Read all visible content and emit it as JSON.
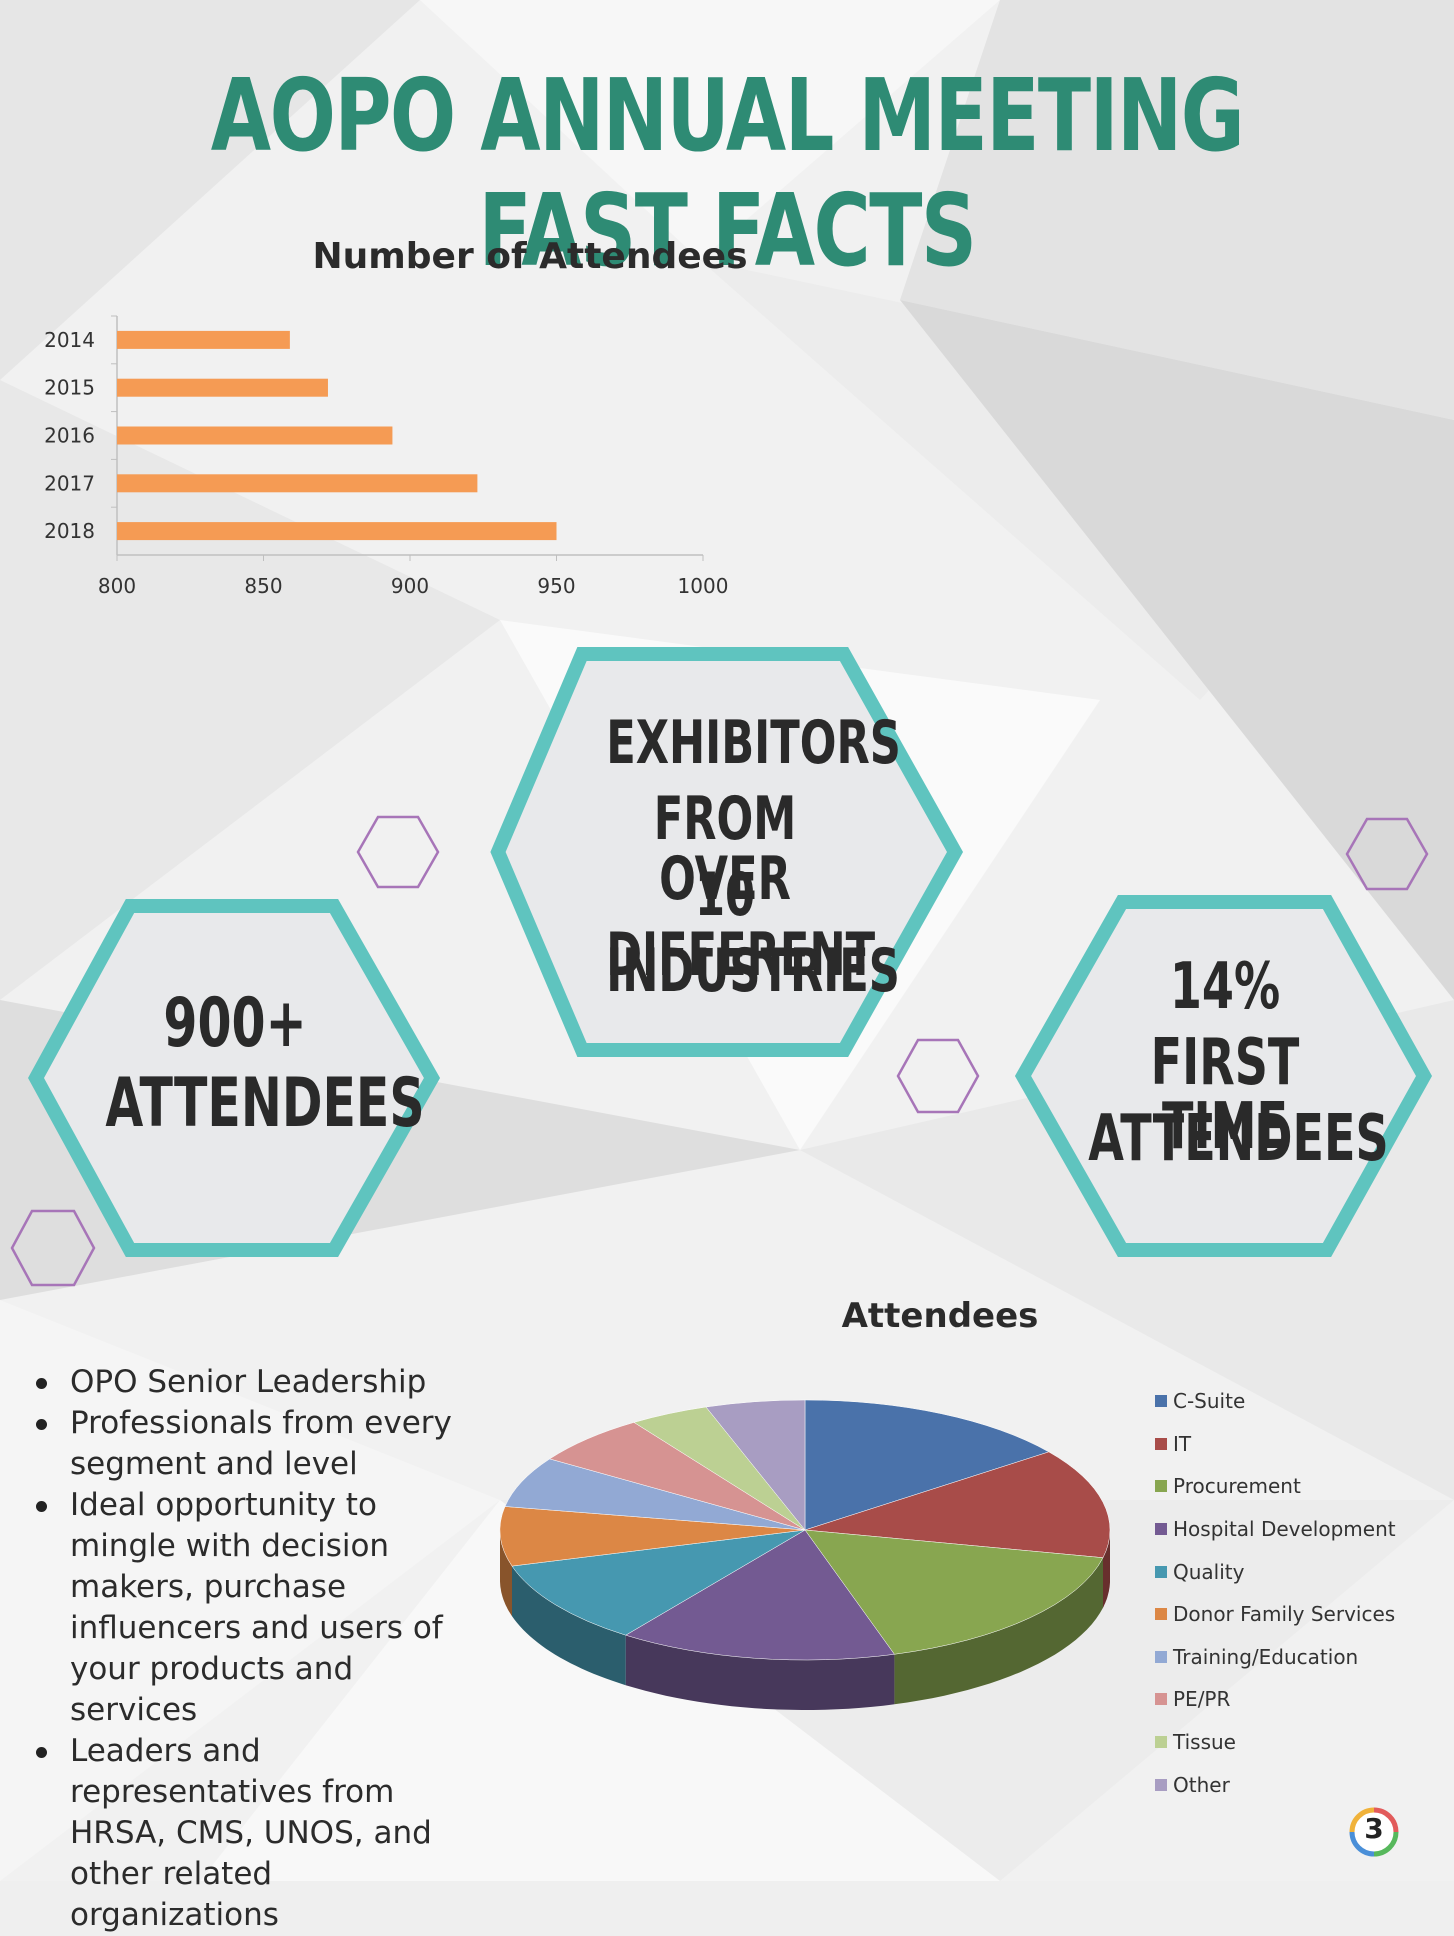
{
  "title": "AOPO ANNUAL MEETING FAST FACTS",
  "colors": {
    "title": "#2e8b74",
    "hex_border": "#5fc4bf",
    "small_hex": "#a775b8",
    "bar": "#f59b54"
  },
  "facts": [
    {
      "lines": [
        "EXHIBITORS",
        "FROM OVER",
        "10 DIFFERENT",
        "INDUSTRIES"
      ]
    },
    {
      "lines": [
        "900+",
        "ATTENDEES"
      ]
    },
    {
      "lines": [
        "14%",
        "FIRST TIME",
        "ATTENDEES"
      ]
    }
  ],
  "bullets": [
    "OPO Senior Leadership",
    "Professionals from every segment and level",
    "Ideal opportunity to mingle with decision makers, purchase influencers and users of your products and services",
    "Leaders and representatives from HRSA, CMS, UNOS, and other related organizations"
  ],
  "page_number": "3",
  "chart_data": [
    {
      "type": "bar",
      "orientation": "horizontal",
      "title": "Number of Attendees",
      "categories": [
        "2014",
        "2015",
        "2016",
        "2017",
        "2018"
      ],
      "values": [
        859,
        872,
        894,
        923,
        950
      ],
      "xlim": [
        800,
        1000
      ],
      "xticks": [
        "800",
        "850",
        "900",
        "950",
        "1000"
      ],
      "color": "#f59b54",
      "grid": false,
      "legend": "none"
    },
    {
      "type": "pie",
      "title": "Attendees",
      "legend": "right",
      "categories": [
        "C-Suite",
        "IT",
        "Procurement",
        "Hospital Development",
        "Quality",
        "Donor Family Services",
        "Training/Education",
        "PE/PR",
        "Tissue",
        "Other"
      ],
      "values": [
        14,
        13,
        16,
        14,
        10,
        7,
        6,
        6,
        4,
        5
      ],
      "colors": [
        "#4a72aa",
        "#a84c49",
        "#88a650",
        "#735a92",
        "#4698b0",
        "#dc8745",
        "#92a9d4",
        "#d69392",
        "#bcd093",
        "#a89dc2"
      ]
    }
  ]
}
